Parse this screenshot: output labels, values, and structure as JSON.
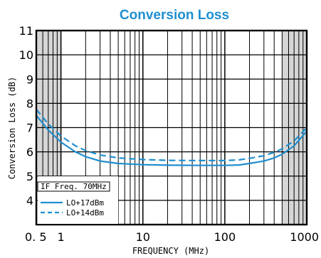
{
  "chart_data": {
    "type": "line",
    "title": "Conversion Loss",
    "xlabel": "FREQUENCY (MHz)",
    "ylabel": "Conversion Loss (dB)",
    "x_scale": "log",
    "xlim": [
      0.5,
      1000
    ],
    "ylim": [
      3,
      11
    ],
    "x_tick_labels": [
      {
        "value": 0.5,
        "label": "0. 5"
      },
      {
        "value": 1,
        "label": "1"
      },
      {
        "value": 10,
        "label": "10"
      },
      {
        "value": 100,
        "label": "100"
      },
      {
        "value": 1000,
        "label": "1000"
      }
    ],
    "y_ticks": [
      4,
      5,
      6,
      7,
      8,
      9,
      10,
      11
    ],
    "shaded_x_ranges": [
      [
        0.5,
        1
      ],
      [
        500,
        1000
      ]
    ],
    "grid": true,
    "legend": {
      "placement": "bottom-left",
      "header": "IF Freq.  70MHz",
      "entries": [
        "LO+17dBm",
        "LO+14dBm"
      ]
    },
    "series": [
      {
        "name": "LO+17dBm",
        "style": "solid",
        "color": "#1f8fd0",
        "x": [
          0.5,
          0.7,
          1,
          1.5,
          2,
          3,
          5,
          10,
          20,
          50,
          100,
          150,
          200,
          300,
          400,
          500,
          700,
          1000
        ],
        "y": [
          7.5,
          6.9,
          6.4,
          6.0,
          5.8,
          5.62,
          5.52,
          5.47,
          5.45,
          5.44,
          5.44,
          5.46,
          5.52,
          5.62,
          5.75,
          5.9,
          6.25,
          6.85
        ]
      },
      {
        "name": "LO+14dBm",
        "style": "dashed",
        "color": "#1f8fd0",
        "x": [
          0.5,
          0.7,
          1,
          1.5,
          2,
          3,
          5,
          10,
          20,
          50,
          100,
          150,
          200,
          300,
          400,
          500,
          700,
          1000
        ],
        "y": [
          7.75,
          7.15,
          6.65,
          6.25,
          6.05,
          5.87,
          5.75,
          5.68,
          5.65,
          5.64,
          5.64,
          5.67,
          5.73,
          5.84,
          5.98,
          6.12,
          6.45,
          7.0
        ]
      }
    ]
  }
}
